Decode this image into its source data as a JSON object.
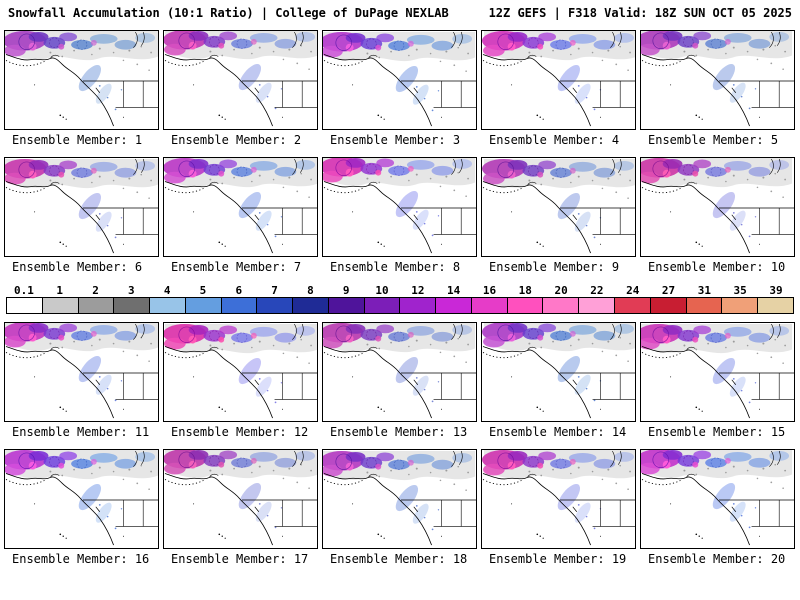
{
  "header": {
    "left": "Snowfall Accumulation (10:1 Ratio) | College of DuPage NEXLAB",
    "right": "12Z GEFS | F318 Valid: 18Z SUN OCT 05 2025"
  },
  "colorbar": {
    "ticks": [
      "0.1",
      "1",
      "2",
      "3",
      "4",
      "5",
      "6",
      "7",
      "8",
      "9",
      "10",
      "12",
      "14",
      "16",
      "18",
      "20",
      "22",
      "24",
      "27",
      "31",
      "35",
      "39"
    ],
    "colors": [
      "#ffffff",
      "#c9c9c9",
      "#9c9c9c",
      "#6f6f6f",
      "#98c4e8",
      "#649ee0",
      "#3d6fd8",
      "#2847ba",
      "#1f2b96",
      "#4f149b",
      "#7c1eb8",
      "#a023cd",
      "#c928d7",
      "#e63cc8",
      "#ff50be",
      "#ff78c8",
      "#ffa0d7",
      "#e13c55",
      "#c81e32",
      "#e66450",
      "#f0a078",
      "#e6d2a5"
    ]
  },
  "grid": {
    "label_prefix": "Ensemble Member:",
    "members": [
      "1",
      "2",
      "3",
      "4",
      "5",
      "6",
      "7",
      "8",
      "9",
      "10",
      "11",
      "12",
      "13",
      "14",
      "15",
      "16",
      "17",
      "18",
      "19",
      "20"
    ]
  },
  "map_palette": {
    "heavy_snow_magenta": "#c235b8",
    "moderate_snow_purple": "#7a35cc",
    "light_snow_blue": "#4a66dd",
    "trace_snow_gray": "#c4c4c4",
    "coastline_black": "#000000"
  }
}
